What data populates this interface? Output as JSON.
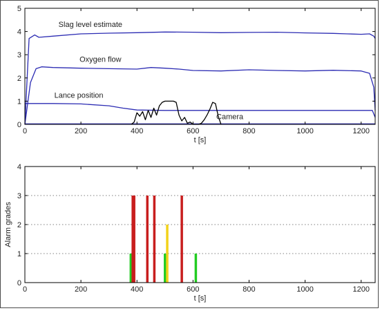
{
  "chart_data": [
    {
      "type": "line",
      "xlabel": "t [s]",
      "ylabel": "",
      "xlim": [
        0,
        1250
      ],
      "ylim": [
        0,
        5
      ],
      "xticks": [
        0,
        200,
        400,
        600,
        800,
        1000,
        1200
      ],
      "yticks": [
        0,
        1,
        2,
        3,
        4,
        5
      ],
      "grid": false,
      "annotations": [
        {
          "text": "Slag level estimate",
          "x": 120,
          "y": 4.2
        },
        {
          "text": "Oxygen flow",
          "x": 195,
          "y": 2.7
        },
        {
          "text": "Lance position",
          "x": 105,
          "y": 1.15
        },
        {
          "text": "Camera",
          "x": 683,
          "y": 0.22
        }
      ],
      "series": [
        {
          "color": "#2b2bb3",
          "x": [
            0,
            15,
            35,
            50,
            100,
            200,
            300,
            400,
            500,
            600,
            700,
            800,
            900,
            1000,
            1100,
            1150,
            1200,
            1230,
            1245,
            1250
          ],
          "y": [
            0,
            3.7,
            3.85,
            3.75,
            3.8,
            3.9,
            3.93,
            3.95,
            3.98,
            3.97,
            3.95,
            3.96,
            3.97,
            3.94,
            3.92,
            3.9,
            3.88,
            3.9,
            3.8,
            3.7
          ]
        },
        {
          "color": "#2b2bb3",
          "x": [
            0,
            20,
            40,
            60,
            100,
            200,
            300,
            400,
            450,
            500,
            550,
            600,
            700,
            800,
            900,
            1000,
            1100,
            1200,
            1230,
            1245,
            1250
          ],
          "y": [
            0,
            1.8,
            2.4,
            2.48,
            2.45,
            2.42,
            2.4,
            2.38,
            2.45,
            2.42,
            2.38,
            2.32,
            2.3,
            2.35,
            2.32,
            2.3,
            2.33,
            2.3,
            2.2,
            1.6,
            0.6
          ]
        },
        {
          "color": "#2b2bb3",
          "x": [
            0,
            100,
            200,
            300,
            350,
            400,
            500,
            600,
            700,
            800,
            900,
            1000,
            1100,
            1200,
            1240,
            1250
          ],
          "y": [
            0.9,
            0.9,
            0.88,
            0.8,
            0.7,
            0.62,
            0.6,
            0.6,
            0.6,
            0.6,
            0.6,
            0.6,
            0.6,
            0.6,
            0.6,
            0.3
          ]
        },
        {
          "color": "#2b2bb3",
          "x": [
            0,
            1250
          ],
          "y": [
            0.02,
            0.02
          ]
        },
        {
          "color": "#000000",
          "x": [
            380,
            390,
            400,
            410,
            420,
            430,
            440,
            450,
            460,
            470,
            480,
            490,
            500,
            510,
            520,
            530,
            540,
            550,
            560,
            570,
            580,
            590,
            600,
            610,
            620,
            630,
            640,
            650,
            660,
            670,
            680,
            690,
            700
          ],
          "y": [
            0,
            0.1,
            0.5,
            0.35,
            0.55,
            0.2,
            0.6,
            0.3,
            0.7,
            0.4,
            0.8,
            0.95,
            1.0,
            1.0,
            1.0,
            1.0,
            0.95,
            0.4,
            0.15,
            0.3,
            0.05,
            0.1,
            0.0,
            0.0,
            0.0,
            0.05,
            0.2,
            0.4,
            0.65,
            0.95,
            0.9,
            0.35,
            0.0
          ]
        }
      ]
    },
    {
      "type": "bar",
      "xlabel": "t [s]",
      "ylabel": "Alarm grades",
      "xlim": [
        0,
        1250
      ],
      "ylim": [
        0,
        4
      ],
      "xticks": [
        0,
        200,
        400,
        600,
        800,
        1000,
        1200
      ],
      "yticks": [
        0,
        1,
        2,
        3,
        4
      ],
      "grid": true,
      "bars": [
        {
          "x": 378,
          "value": 1,
          "color": "#22cc22"
        },
        {
          "x": 385,
          "value": 3,
          "color": "#c81e1e"
        },
        {
          "x": 390,
          "value": 3,
          "color": "#c81e1e"
        },
        {
          "x": 437,
          "value": 3,
          "color": "#c81e1e"
        },
        {
          "x": 462,
          "value": 3,
          "color": "#c81e1e"
        },
        {
          "x": 500,
          "value": 1,
          "color": "#22cc22"
        },
        {
          "x": 508,
          "value": 2,
          "color": "#f2d21a"
        },
        {
          "x": 560,
          "value": 3,
          "color": "#c81e1e"
        },
        {
          "x": 610,
          "value": 1,
          "color": "#22cc22"
        }
      ]
    }
  ]
}
